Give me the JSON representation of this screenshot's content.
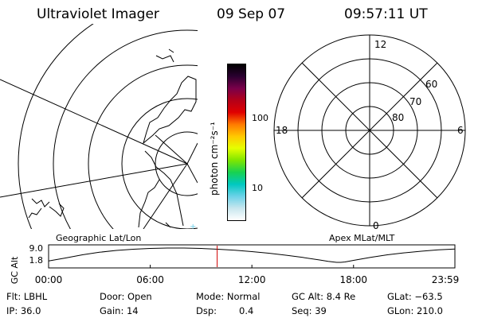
{
  "header": {
    "title": "Ultraviolet Imager",
    "date": "09 Sep 07",
    "time": "09:57:11 UT"
  },
  "panels": {
    "left_caption": "Geographic Lat/Lon",
    "right_caption": "Apex MLat/MLT"
  },
  "colorbar": {
    "unit_label": "photon cm⁻²s⁻¹",
    "ticks": [
      "100",
      "10"
    ],
    "scale": "log",
    "colors": [
      "#000000",
      "#2a0030",
      "#7a004a",
      "#b40018",
      "#e00000",
      "#ff7a00",
      "#ffc800",
      "#e6ff00",
      "#7fe600",
      "#18d250",
      "#00c8c0",
      "#6ad2e8",
      "#c8e6ee",
      "#ffffff"
    ]
  },
  "polar_grid": {
    "mlt_labels": {
      "top": "12",
      "right": "6",
      "bottom": "0",
      "left": "18"
    },
    "mlat_labels": [
      "60",
      "70",
      "80"
    ]
  },
  "chart_data": [
    {
      "type": "line",
      "title": "",
      "ylabel": "GC Alt",
      "yticks": [
        "9.0",
        "1.8"
      ],
      "ylim": [
        1.8,
        9.0
      ],
      "xticks": [
        "00:00",
        "06:00",
        "12:00",
        "18:00",
        "23:59"
      ],
      "xlim": [
        "00:00",
        "23:59"
      ],
      "x": [
        "00:00",
        "01:00",
        "02:00",
        "03:00",
        "04:00",
        "05:00",
        "06:00",
        "07:00",
        "08:00",
        "09:00",
        "10:00",
        "11:00",
        "12:00",
        "13:00",
        "14:00",
        "15:00",
        "16:00",
        "16:30",
        "17:00",
        "17:15",
        "17:30",
        "18:00",
        "19:00",
        "20:00",
        "21:00",
        "22:00",
        "23:00",
        "23:59"
      ],
      "series": [
        {
          "values": [
            2.5,
            4.0,
            5.6,
            6.9,
            7.8,
            8.4,
            8.8,
            9.0,
            9.0,
            8.8,
            8.4,
            7.9,
            7.2,
            6.4,
            5.4,
            4.3,
            3.0,
            2.3,
            1.8,
            1.8,
            2.0,
            2.8,
            4.3,
            5.6,
            6.6,
            7.4,
            8.1,
            8.5
          ]
        }
      ],
      "current_time_marker": "09:57",
      "marker_color": "#d00000"
    }
  ],
  "footer": {
    "flt": "Flt: LBHL",
    "door": "Door: Open",
    "mode": "Mode: Normal",
    "gc_alt": "GC Alt: 8.4 Re",
    "glat": "GLat: −63.5",
    "ip": "IP: 36.0",
    "gain": "Gain: 14",
    "dsp_label": "Dsp:",
    "dsp_value": "0.4",
    "seq": "Seq: 39",
    "glon": "GLon: 210.0"
  }
}
